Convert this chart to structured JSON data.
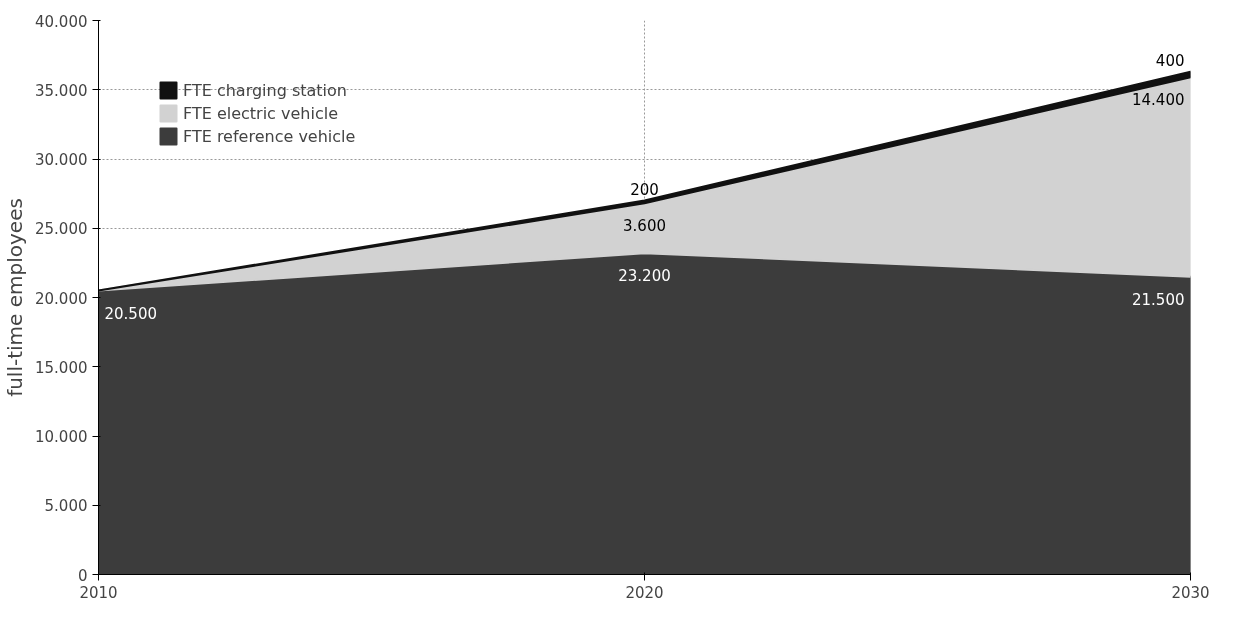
{
  "chart_data": {
    "type": "area",
    "stacked": true,
    "ylabel": "full-time employees",
    "x": [
      2010,
      2020,
      2030
    ],
    "xlim": [
      2010,
      2030
    ],
    "xticks": [
      2010,
      2020,
      2030
    ],
    "ylim": [
      0,
      40000
    ],
    "yticks": [
      {
        "value": 0,
        "label": "0"
      },
      {
        "value": 5000,
        "label": "5.000"
      },
      {
        "value": 10000,
        "label": "10.000"
      },
      {
        "value": 15000,
        "label": "15.000"
      },
      {
        "value": 20000,
        "label": "20.000"
      },
      {
        "value": 25000,
        "label": "25.000"
      },
      {
        "value": 30000,
        "label": "30.000"
      },
      {
        "value": 35000,
        "label": "35.000"
      },
      {
        "value": 40000,
        "label": "40.000"
      }
    ],
    "series": [
      {
        "name": "FTE reference vehicle",
        "color": "#3c3c3c",
        "values": [
          20500,
          23200,
          21500
        ],
        "value_labels": [
          "20.500",
          "23.200",
          "21.500"
        ]
      },
      {
        "name": "FTE electric vehicle",
        "color": "#d2d2d2",
        "values": [
          0,
          3600,
          14400
        ],
        "value_labels": [
          null,
          "3.600",
          "14.400"
        ]
      },
      {
        "name": "FTE charging station",
        "color": "#111111",
        "values": [
          0,
          200,
          400
        ],
        "value_labels": [
          null,
          "200",
          "400"
        ]
      }
    ],
    "grid": true,
    "legend": "top left"
  }
}
